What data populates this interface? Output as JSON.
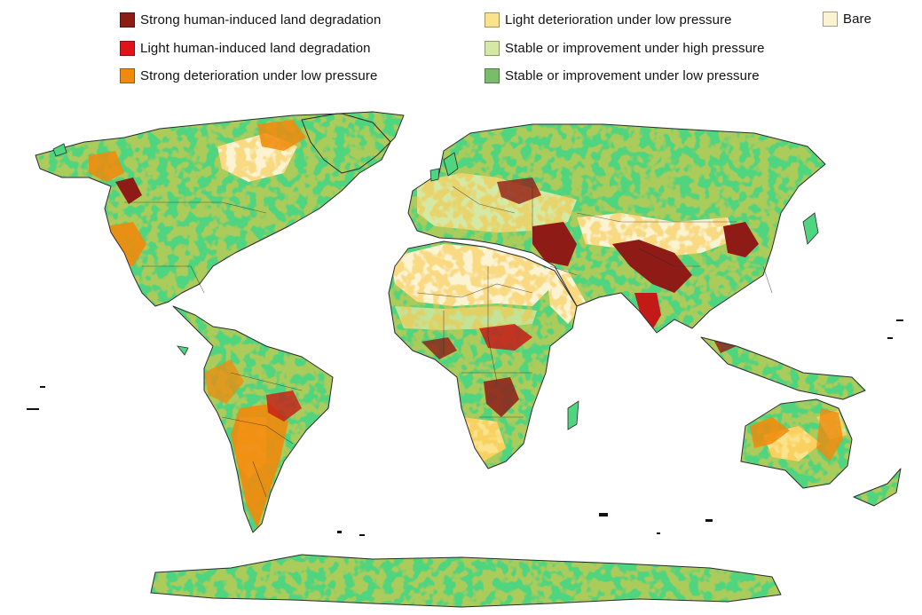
{
  "legend": {
    "items": [
      {
        "id": "strong-human",
        "label": "Strong human-induced land degradation",
        "color": "#8f1b17"
      },
      {
        "id": "light-human",
        "label": "Light human-induced land degradation",
        "color": "#e0131b"
      },
      {
        "id": "strong-det-low",
        "label": "Strong deterioration under low pressure",
        "color": "#f08a0c"
      },
      {
        "id": "light-det-low",
        "label": "Light deterioration under low pressure",
        "color": "#fbe38c"
      },
      {
        "id": "stable-high",
        "label": "Stable or improvement under high pressure",
        "color": "#d5e9a5"
      },
      {
        "id": "stable-low",
        "label": "Stable or improvement under low pressure",
        "color": "#79bd6a"
      },
      {
        "id": "bare",
        "label": "Bare",
        "color": "#fbf3d2"
      }
    ]
  },
  "map": {
    "land_green": "#4fd47f",
    "ocean": "#ffffff",
    "border": "#2b2b2b"
  }
}
